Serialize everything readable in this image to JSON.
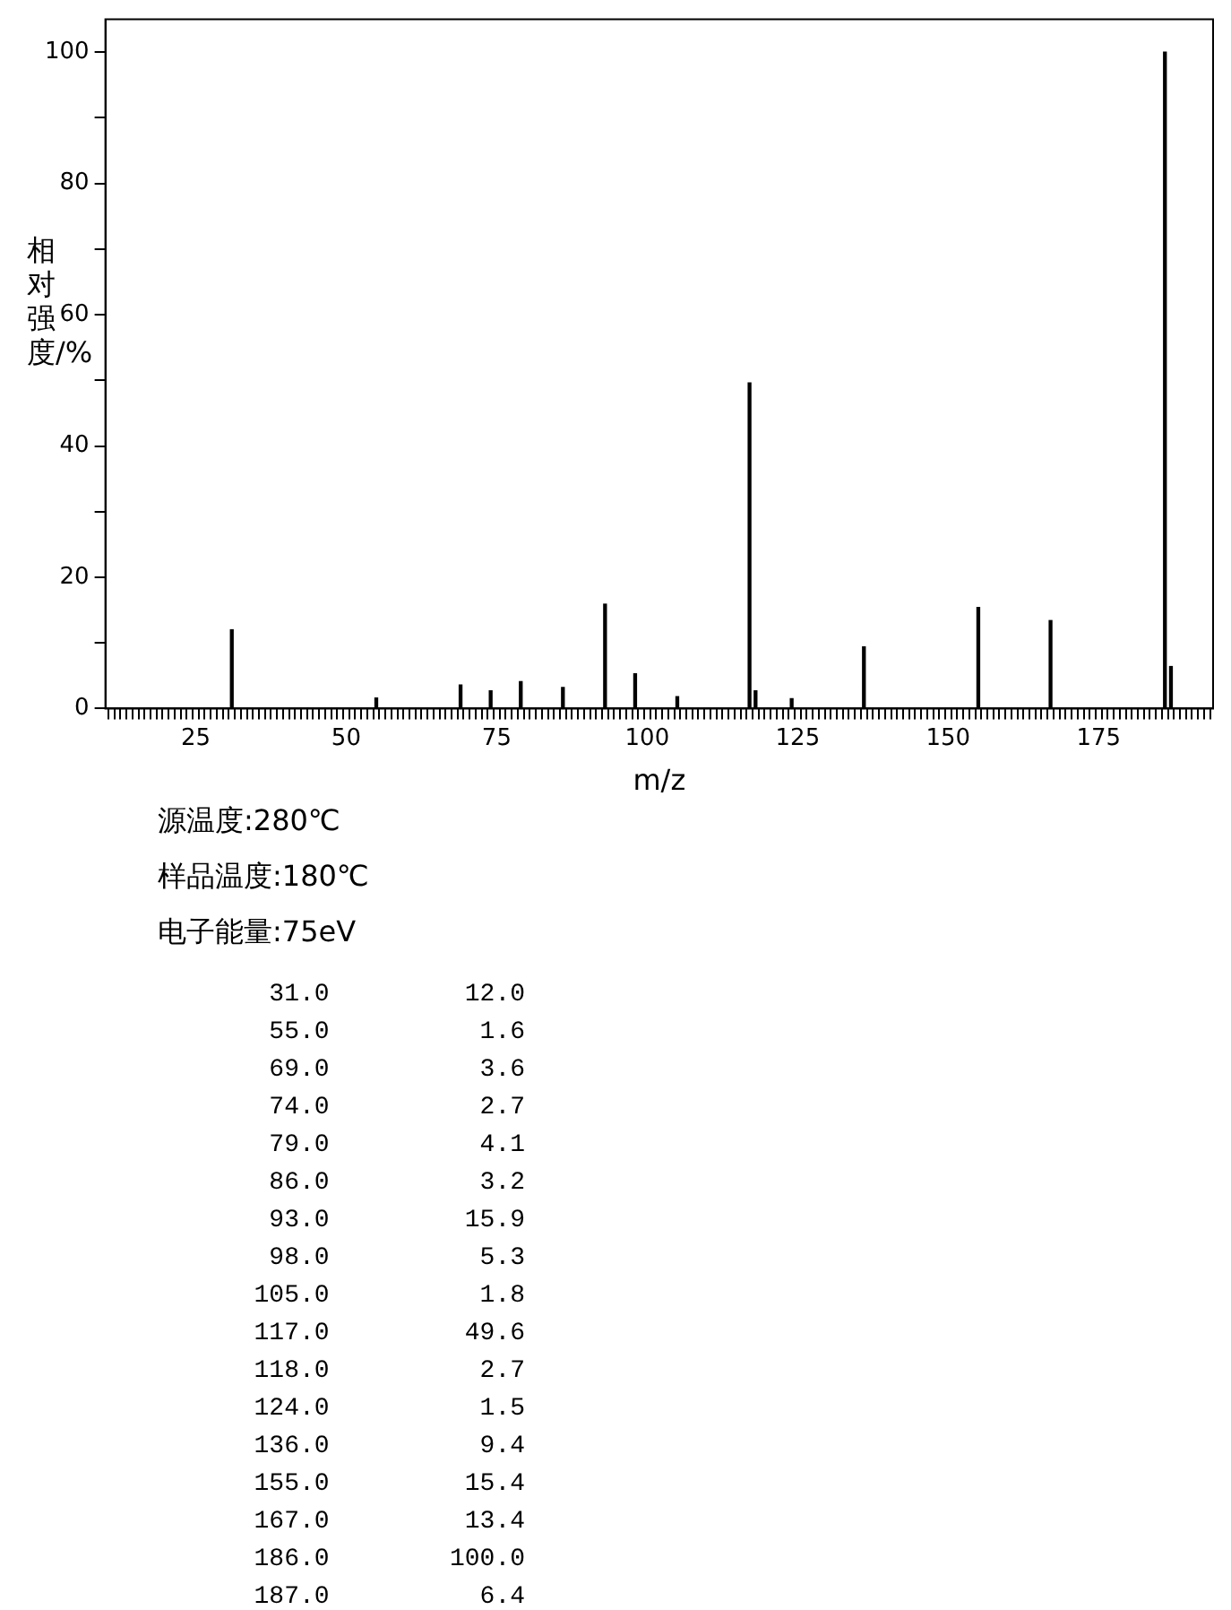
{
  "chart_data": {
    "type": "bar",
    "xlabel": "m/z",
    "ylabel": "相对强度/%",
    "annotations": [
      "源温度:280℃",
      "样品温度:180℃",
      "电子能量:75eV",
      "31.0         12.0",
      "55.0          1.6",
      "69.0          3.6",
      "74.0          2.7",
      "79.0          4.1",
      "86.0          3.2",
      "93.0         15.9",
      "98.0          5.3",
      "105.0          1.8",
      "117.0         49.6",
      "118.0          2.7",
      "124.0          1.5",
      "136.0          9.4",
      "155.0         15.4",
      "167.0         13.4",
      "186.0        100.0",
      "187.0          6.4"
    ],
    "x": [
      31,
      55,
      69,
      74,
      79,
      86,
      93,
      98,
      105,
      117,
      118,
      124,
      136,
      155,
      167,
      186,
      187
    ],
    "values": [
      12.0,
      1.6,
      3.6,
      2.7,
      4.1,
      3.2,
      15.9,
      5.3,
      1.8,
      49.6,
      2.7,
      1.5,
      9.4,
      15.4,
      13.4,
      100.0,
      6.4
    ],
    "color": "#000000",
    "grid": false,
    "xlim": [
      10,
      194
    ],
    "xticks": [
      {
        "value": 11,
        "label": null
      },
      {
        "value": 12,
        "label": null
      },
      {
        "value": 13,
        "label": null
      },
      {
        "value": 14,
        "label": null
      },
      {
        "value": 15,
        "label": null
      },
      {
        "value": 16,
        "label": null
      },
      {
        "value": 17,
        "label": null
      },
      {
        "value": 18,
        "label": null
      },
      {
        "value": 19,
        "label": null
      },
      {
        "value": 20,
        "label": null
      },
      {
        "value": 21,
        "label": null
      },
      {
        "value": 22,
        "label": null
      },
      {
        "value": 23,
        "label": null
      },
      {
        "value": 24,
        "label": null
      },
      25,
      {
        "value": 26,
        "label": null
      },
      {
        "value": 27,
        "label": null
      },
      {
        "value": 28,
        "label": null
      },
      {
        "value": 29,
        "label": null
      },
      {
        "value": 30,
        "label": null
      },
      {
        "value": 31,
        "label": null
      },
      {
        "value": 32,
        "label": null
      },
      {
        "value": 33,
        "label": null
      },
      {
        "value": 34,
        "label": null
      },
      {
        "value": 35,
        "label": null
      },
      {
        "value": 36,
        "label": null
      },
      {
        "value": 37,
        "label": null
      },
      {
        "value": 38,
        "label": null
      },
      {
        "value": 39,
        "label": null
      },
      {
        "value": 40,
        "label": null
      },
      {
        "value": 41,
        "label": null
      },
      {
        "value": 42,
        "label": null
      },
      {
        "value": 43,
        "label": null
      },
      {
        "value": 44,
        "label": null
      },
      {
        "value": 45,
        "label": null
      },
      {
        "value": 46,
        "label": null
      },
      {
        "value": 47,
        "label": null
      },
      {
        "value": 48,
        "label": null
      },
      {
        "value": 49,
        "label": null
      },
      50,
      {
        "value": 51,
        "label": null
      },
      {
        "value": 52,
        "label": null
      },
      {
        "value": 53,
        "label": null
      },
      {
        "value": 54,
        "label": null
      },
      {
        "value": 55,
        "label": null
      },
      {
        "value": 56,
        "label": null
      },
      {
        "value": 57,
        "label": null
      },
      {
        "value": 58,
        "label": null
      },
      {
        "value": 59,
        "label": null
      },
      {
        "value": 60,
        "label": null
      },
      {
        "value": 61,
        "label": null
      },
      {
        "value": 62,
        "label": null
      },
      {
        "value": 63,
        "label": null
      },
      {
        "value": 64,
        "label": null
      },
      {
        "value": 65,
        "label": null
      },
      {
        "value": 66,
        "label": null
      },
      {
        "value": 67,
        "label": null
      },
      {
        "value": 68,
        "label": null
      },
      {
        "value": 69,
        "label": null
      },
      {
        "value": 70,
        "label": null
      },
      {
        "value": 71,
        "label": null
      },
      {
        "value": 72,
        "label": null
      },
      {
        "value": 73,
        "label": null
      },
      {
        "value": 74,
        "label": null
      },
      75,
      {
        "value": 76,
        "label": null
      },
      {
        "value": 77,
        "label": null
      },
      {
        "value": 78,
        "label": null
      },
      {
        "value": 79,
        "label": null
      },
      {
        "value": 80,
        "label": null
      },
      {
        "value": 81,
        "label": null
      },
      {
        "value": 82,
        "label": null
      },
      {
        "value": 83,
        "label": null
      },
      {
        "value": 84,
        "label": null
      },
      {
        "value": 85,
        "label": null
      },
      {
        "value": 86,
        "label": null
      },
      {
        "value": 87,
        "label": null
      },
      {
        "value": 88,
        "label": null
      },
      {
        "value": 89,
        "label": null
      },
      {
        "value": 90,
        "label": null
      },
      {
        "value": 91,
        "label": null
      },
      {
        "value": 92,
        "label": null
      },
      {
        "value": 93,
        "label": null
      },
      {
        "value": 94,
        "label": null
      },
      {
        "value": 95,
        "label": null
      },
      {
        "value": 96,
        "label": null
      },
      {
        "value": 97,
        "label": null
      },
      {
        "value": 98,
        "label": null
      },
      {
        "value": 99,
        "label": null
      },
      100,
      {
        "value": 101,
        "label": null
      },
      {
        "value": 102,
        "label": null
      },
      {
        "value": 103,
        "label": null
      },
      {
        "value": 104,
        "label": null
      },
      {
        "value": 105,
        "label": null
      },
      {
        "value": 106,
        "label": null
      },
      {
        "value": 107,
        "label": null
      },
      {
        "value": 108,
        "label": null
      },
      {
        "value": 109,
        "label": null
      },
      {
        "value": 110,
        "label": null
      },
      {
        "value": 111,
        "label": null
      },
      {
        "value": 112,
        "label": null
      },
      {
        "value": 113,
        "label": null
      },
      {
        "value": 114,
        "label": null
      },
      {
        "value": 115,
        "label": null
      },
      {
        "value": 116,
        "label": null
      },
      {
        "value": 117,
        "label": null
      },
      {
        "value": 118,
        "label": null
      },
      {
        "value": 119,
        "label": null
      },
      {
        "value": 120,
        "label": null
      },
      {
        "value": 121,
        "label": null
      },
      {
        "value": 122,
        "label": null
      },
      {
        "value": 123,
        "label": null
      },
      {
        "value": 124,
        "label": null
      },
      125,
      {
        "value": 126,
        "label": null
      },
      {
        "value": 127,
        "label": null
      },
      {
        "value": 128,
        "label": null
      },
      {
        "value": 129,
        "label": null
      },
      {
        "value": 130,
        "label": null
      },
      {
        "value": 131,
        "label": null
      },
      {
        "value": 132,
        "label": null
      },
      {
        "value": 133,
        "label": null
      },
      {
        "value": 134,
        "label": null
      },
      {
        "value": 135,
        "label": null
      },
      {
        "value": 136,
        "label": null
      },
      {
        "value": 137,
        "label": null
      },
      {
        "value": 138,
        "label": null
      },
      {
        "value": 139,
        "label": null
      },
      {
        "value": 140,
        "label": null
      },
      {
        "value": 141,
        "label": null
      },
      {
        "value": 142,
        "label": null
      },
      {
        "value": 143,
        "label": null
      },
      {
        "value": 144,
        "label": null
      },
      {
        "value": 145,
        "label": null
      },
      {
        "value": 146,
        "label": null
      },
      {
        "value": 147,
        "label": null
      },
      {
        "value": 148,
        "label": null
      },
      {
        "value": 149,
        "label": null
      },
      150,
      {
        "value": 151,
        "label": null
      },
      {
        "value": 152,
        "label": null
      },
      {
        "value": 153,
        "label": null
      },
      {
        "value": 154,
        "label": null
      },
      {
        "value": 155,
        "label": null
      },
      {
        "value": 156,
        "label": null
      },
      {
        "value": 157,
        "label": null
      },
      {
        "value": 158,
        "label": null
      },
      {
        "value": 159,
        "label": null
      },
      {
        "value": 160,
        "label": null
      },
      {
        "value": 161,
        "label": null
      },
      {
        "value": 162,
        "label": null
      },
      {
        "value": 163,
        "label": null
      },
      {
        "value": 164,
        "label": null
      },
      {
        "value": 165,
        "label": null
      },
      {
        "value": 166,
        "label": null
      },
      {
        "value": 167,
        "label": null
      },
      {
        "value": 168,
        "label": null
      },
      {
        "value": 169,
        "label": null
      },
      {
        "value": 170,
        "label": null
      },
      {
        "value": 171,
        "label": null
      },
      {
        "value": 172,
        "label": null
      },
      {
        "value": 173,
        "label": null
      },
      {
        "value": 174,
        "label": null
      },
      175,
      {
        "value": 176,
        "label": null
      },
      {
        "value": 177,
        "label": null
      },
      {
        "value": 178,
        "label": null
      },
      {
        "value": 179,
        "label": null
      },
      {
        "value": 180,
        "label": null
      },
      {
        "value": 181,
        "label": null
      },
      {
        "value": 182,
        "label": null
      },
      {
        "value": 183,
        "label": null
      },
      {
        "value": 184,
        "label": null
      },
      {
        "value": 185,
        "label": null
      },
      {
        "value": 186,
        "label": null
      },
      {
        "value": 187,
        "label": null
      },
      {
        "value": 188,
        "label": null
      },
      {
        "value": 189,
        "label": null
      },
      {
        "value": 190,
        "label": null
      },
      {
        "value": 191,
        "label": null
      },
      {
        "value": 192,
        "label": null
      },
      {
        "value": 193,
        "label": null
      }
    ],
    "ylim": [
      0,
      105
    ],
    "yticks": [
      0,
      {
        "value": 10,
        "label": null
      },
      20,
      {
        "value": 30,
        "label": null
      },
      40,
      {
        "value": 50,
        "label": null
      },
      60,
      {
        "value": 70,
        "label": null
      },
      80,
      {
        "value": 90,
        "label": null
      },
      100
    ]
  }
}
